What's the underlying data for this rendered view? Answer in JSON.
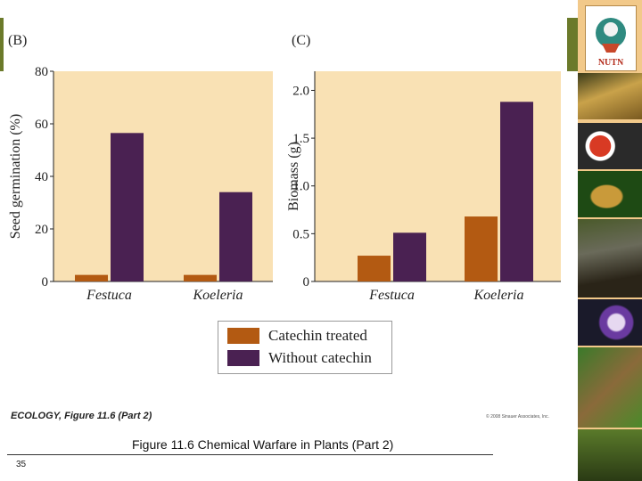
{
  "panel_b_label": "(B)",
  "panel_c_label": "(C)",
  "chart_data": [
    {
      "type": "bar",
      "panel": "(B)",
      "categories": [
        "Festuca",
        "Koeleria"
      ],
      "series": [
        {
          "name": "Catechin treated",
          "values": [
            2.5,
            2.5
          ]
        },
        {
          "name": "Without catechin",
          "values": [
            56.5,
            34
          ]
        }
      ],
      "ylabel": "Seed germination (%)",
      "ylim": [
        0,
        80
      ],
      "yticks": [
        "0",
        "20",
        "40",
        "60",
        "80"
      ],
      "ytick_values": [
        0,
        20,
        40,
        60,
        80
      ]
    },
    {
      "type": "bar",
      "panel": "(C)",
      "categories": [
        "Festuca",
        "Koeleria"
      ],
      "series": [
        {
          "name": "Catechin treated",
          "values": [
            0.27,
            0.68
          ]
        },
        {
          "name": "Without catechin",
          "values": [
            0.51,
            1.88
          ]
        }
      ],
      "ylabel": "Biomass (g)",
      "ylim": [
        0,
        2.2
      ],
      "yticks": [
        "0",
        "0.5",
        "1.0",
        "1.5",
        "2.0"
      ],
      "ytick_values": [
        0,
        0.5,
        1.0,
        1.5,
        2.0
      ]
    }
  ],
  "legend": [
    {
      "label": "Catechin treated",
      "color": "#b35a12"
    },
    {
      "label": "Without catechin",
      "color": "#4a2152"
    }
  ],
  "colors": {
    "plot_bg": "#f9e1b4",
    "catechin": "#b35a12",
    "without": "#4a2152",
    "accent": "#6b7a2a",
    "sidebar": "#f2c98a"
  },
  "credit": "ECOLOGY, Figure 11.6 (Part 2)",
  "copyright": "© 2008 Sinauer Associates, Inc.",
  "caption": "Figure 11.6  Chemical Warfare in Plants (Part 2)",
  "page_number": "35",
  "logo_text": "NUTN",
  "sidebar_photos": [
    "orchid-photo",
    "frog-red-photo",
    "frog-green-photo",
    "monkey-photo",
    "octopus-photo",
    "lizard-photo",
    "snake-photo"
  ]
}
